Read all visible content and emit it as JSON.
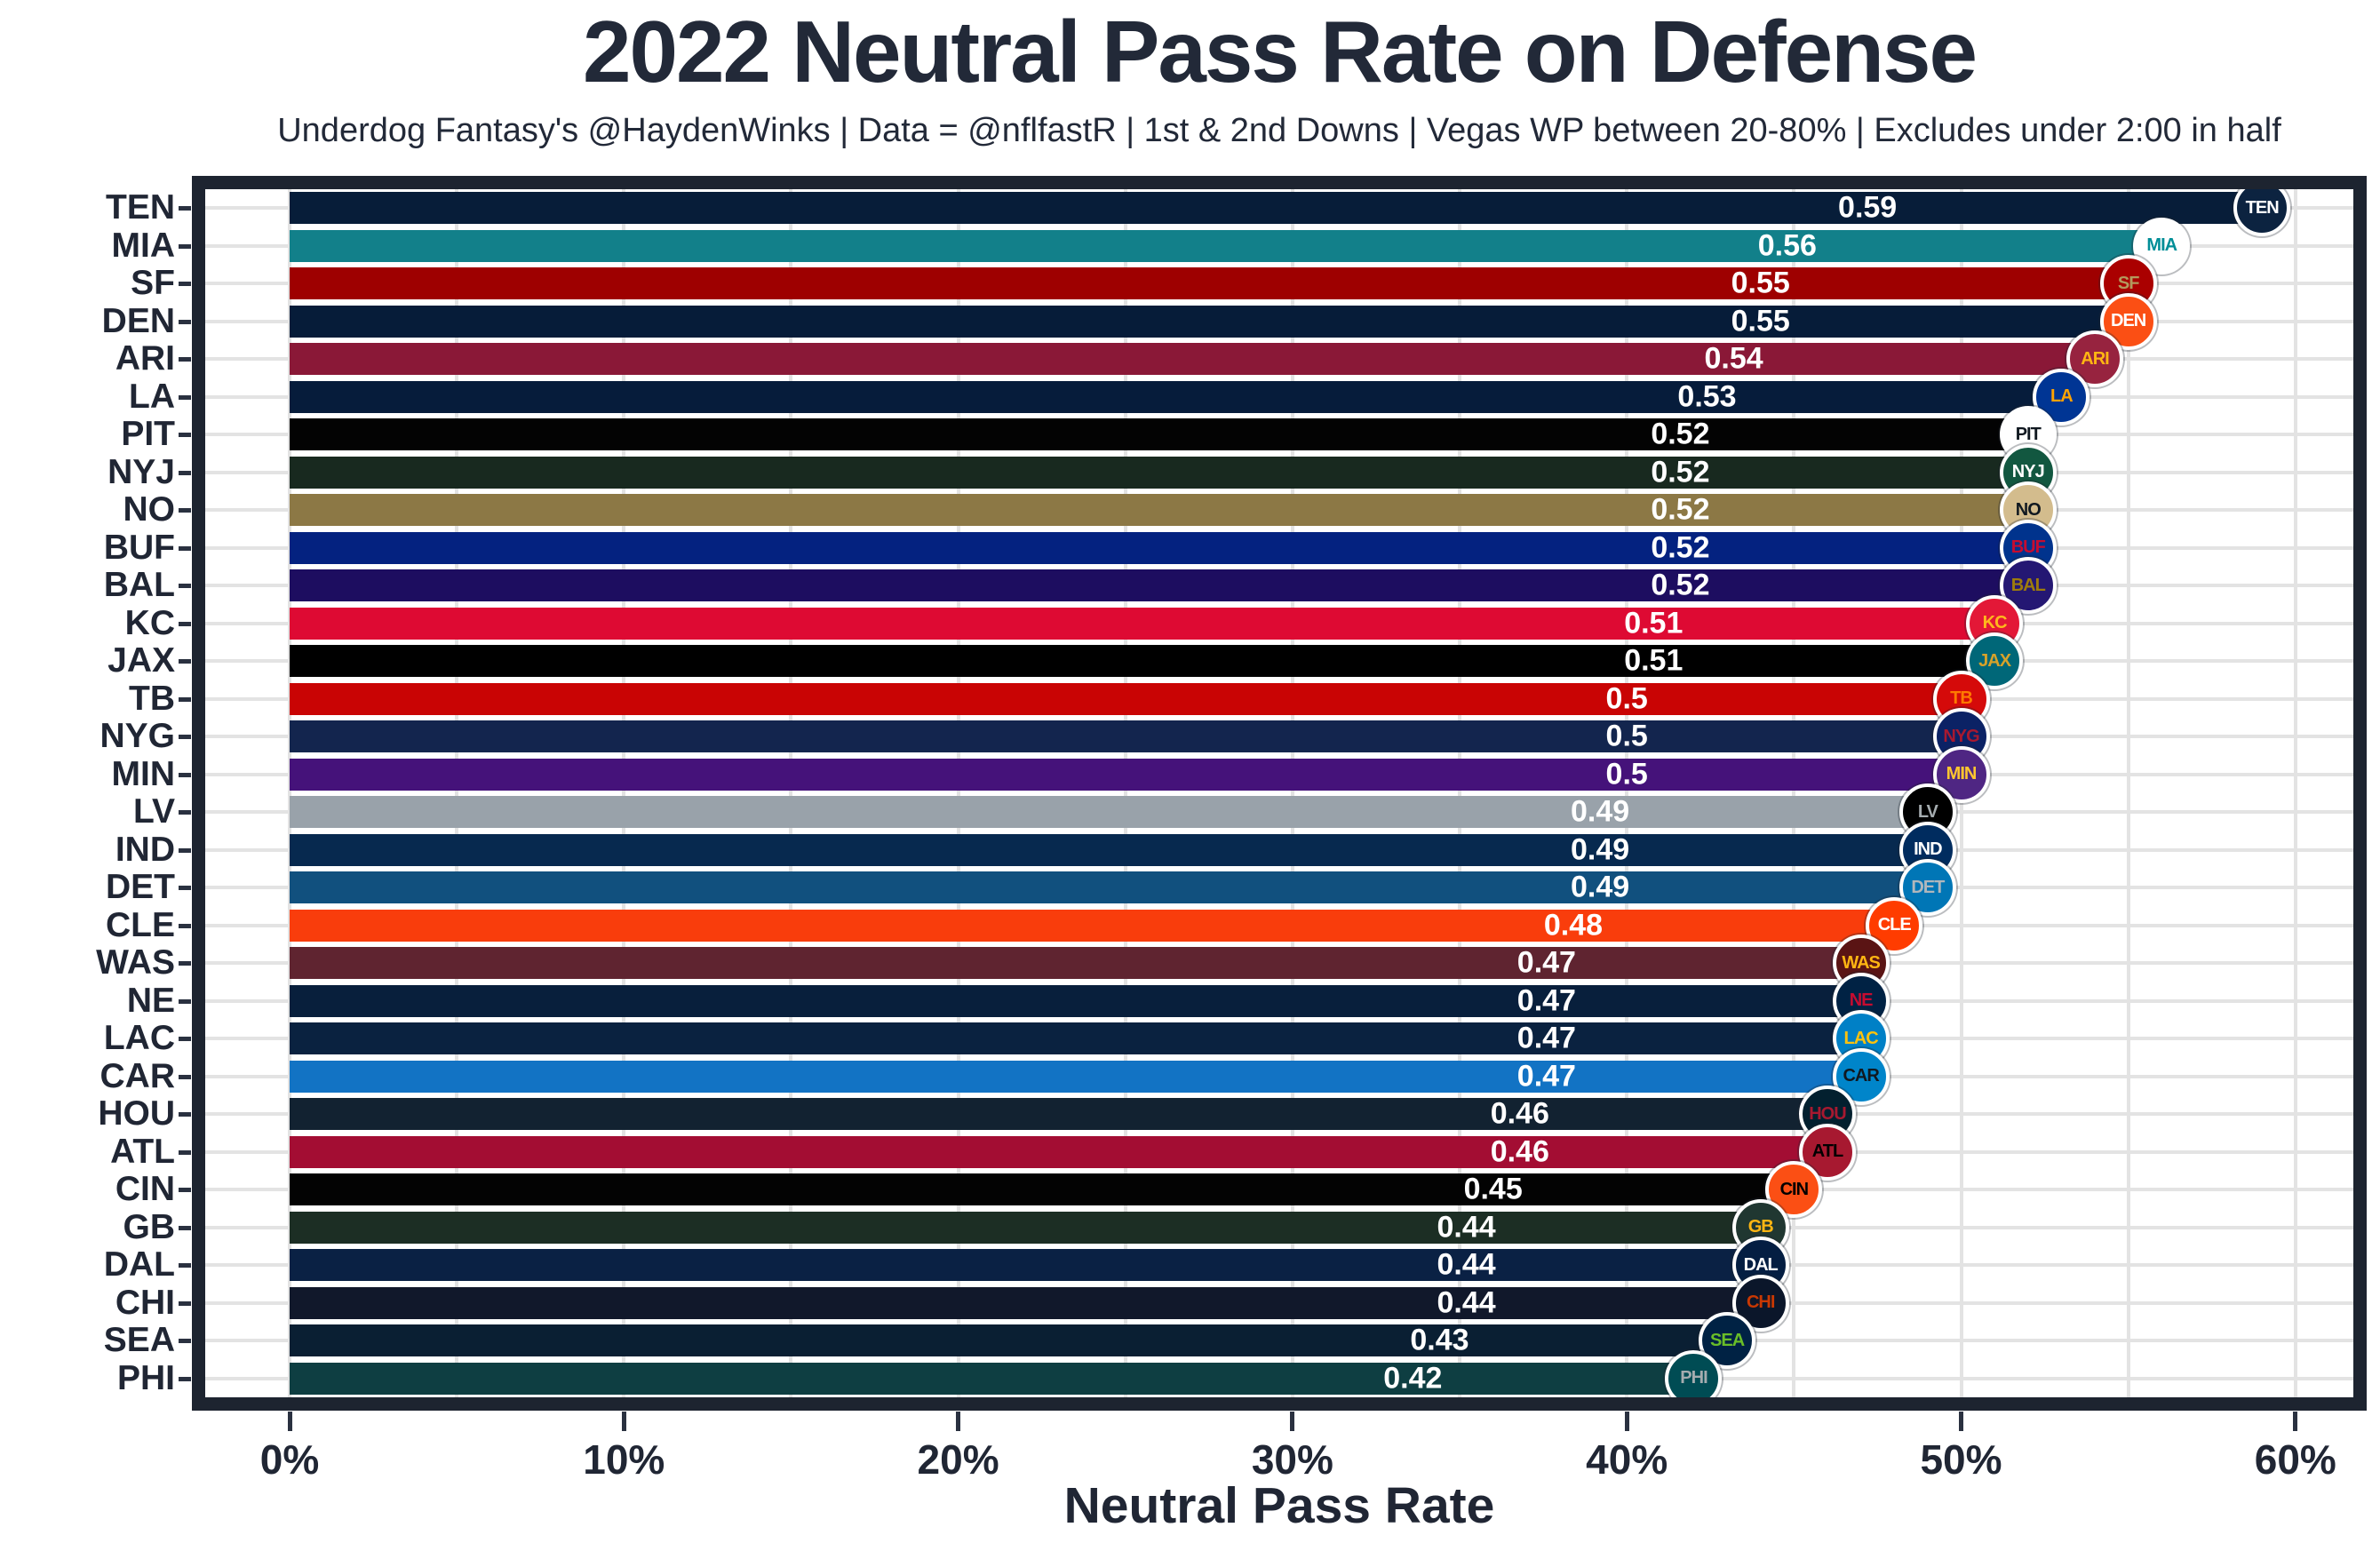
{
  "title": "2022 Neutral Pass Rate on Defense",
  "subtitle": "Underdog Fantasy's @HaydenWinks | Data = @nflfastR | 1st & 2nd Downs | Vegas WP between 20-80% | Excludes under 2:00 in half",
  "x_axis": {
    "label": "Neutral Pass Rate",
    "ticks": [
      {
        "value": 0,
        "label": "0%"
      },
      {
        "value": 10,
        "label": "10%"
      },
      {
        "value": 20,
        "label": "20%"
      },
      {
        "value": 30,
        "label": "30%"
      },
      {
        "value": 40,
        "label": "40%"
      },
      {
        "value": 50,
        "label": "50%"
      },
      {
        "value": 60,
        "label": "60%"
      }
    ],
    "gridline_step_pct": 5,
    "gridline_max_pct": 60
  },
  "colors": {
    "background": "#FFFFFF",
    "panel_border": "#1D2430",
    "gridline": "#E3E3E3",
    "text": "#202634",
    "value_label": "#FFFFFF",
    "axis_tick": "#2A3140"
  },
  "chart_data": {
    "type": "bar",
    "orientation": "horizontal",
    "title": "2022 Neutral Pass Rate on Defense",
    "xlabel": "Neutral Pass Rate",
    "xlim": [
      0,
      0.62
    ],
    "grid": true,
    "value_label_note": "white value label centered at ~80% of bar length; team logo badge at bar end",
    "categories": [
      "TEN",
      "MIA",
      "SF",
      "DEN",
      "ARI",
      "LA",
      "PIT",
      "NYJ",
      "NO",
      "BUF",
      "BAL",
      "KC",
      "JAX",
      "TB",
      "NYG",
      "MIN",
      "LV",
      "IND",
      "DET",
      "CLE",
      "WAS",
      "NE",
      "LAC",
      "CAR",
      "HOU",
      "ATL",
      "CIN",
      "GB",
      "DAL",
      "CHI",
      "SEA",
      "PHI"
    ],
    "values": [
      0.59,
      0.56,
      0.55,
      0.55,
      0.54,
      0.53,
      0.52,
      0.52,
      0.52,
      0.52,
      0.52,
      0.51,
      0.51,
      0.5,
      0.5,
      0.5,
      0.49,
      0.49,
      0.49,
      0.48,
      0.47,
      0.47,
      0.47,
      0.47,
      0.46,
      0.46,
      0.45,
      0.44,
      0.44,
      0.44,
      0.43,
      0.42
    ],
    "teams": [
      {
        "abbr": "TEN",
        "value": 0.59,
        "label": "0.59",
        "bar_color": "#071D39",
        "logo": {
          "bg": "#0C2340",
          "fg": "#FFFFFF"
        }
      },
      {
        "abbr": "MIA",
        "value": 0.56,
        "label": "0.56",
        "bar_color": "#12808A",
        "logo": {
          "bg": "#FFFFFF",
          "fg": "#008E97"
        }
      },
      {
        "abbr": "SF",
        "value": 0.55,
        "label": "0.55",
        "bar_color": "#9E0000",
        "logo": {
          "bg": "#AA0000",
          "fg": "#B3995D"
        }
      },
      {
        "abbr": "DEN",
        "value": 0.55,
        "label": "0.55",
        "bar_color": "#061C39",
        "logo": {
          "bg": "#FB4F14",
          "fg": "#FFFFFF"
        }
      },
      {
        "abbr": "ARI",
        "value": 0.54,
        "label": "0.54",
        "bar_color": "#8A1837",
        "logo": {
          "bg": "#97233F",
          "fg": "#FFB612"
        }
      },
      {
        "abbr": "LA",
        "value": 0.53,
        "label": "0.53",
        "bar_color": "#061C3B",
        "logo": {
          "bg": "#003594",
          "fg": "#FFA300"
        }
      },
      {
        "abbr": "PIT",
        "value": 0.52,
        "label": "0.52",
        "bar_color": "#030303",
        "logo": {
          "bg": "#FFFFFF",
          "fg": "#101820"
        }
      },
      {
        "abbr": "NYJ",
        "value": 0.52,
        "label": "0.52",
        "bar_color": "#18291F",
        "logo": {
          "bg": "#125740",
          "fg": "#FFFFFF"
        }
      },
      {
        "abbr": "NO",
        "value": 0.52,
        "label": "0.52",
        "bar_color": "#8C7845",
        "logo": {
          "bg": "#D3BC8D",
          "fg": "#101820"
        }
      },
      {
        "abbr": "BUF",
        "value": 0.52,
        "label": "0.52",
        "bar_color": "#042280",
        "logo": {
          "bg": "#00338D",
          "fg": "#C60C30"
        }
      },
      {
        "abbr": "BAL",
        "value": 0.52,
        "label": "0.52",
        "bar_color": "#1D0D60",
        "logo": {
          "bg": "#241773",
          "fg": "#9E7C0C"
        }
      },
      {
        "abbr": "KC",
        "value": 0.51,
        "label": "0.51",
        "bar_color": "#DE0A33",
        "logo": {
          "bg": "#E31837",
          "fg": "#FFB81C"
        }
      },
      {
        "abbr": "JAX",
        "value": 0.51,
        "label": "0.51",
        "bar_color": "#000000",
        "logo": {
          "bg": "#006778",
          "fg": "#D7A22A"
        }
      },
      {
        "abbr": "TB",
        "value": 0.5,
        "label": "0.5",
        "bar_color": "#C90404",
        "logo": {
          "bg": "#D50A0A",
          "fg": "#FF7900"
        }
      },
      {
        "abbr": "NYG",
        "value": 0.5,
        "label": "0.5",
        "bar_color": "#13254E",
        "logo": {
          "bg": "#0B2265",
          "fg": "#A71930"
        }
      },
      {
        "abbr": "MIN",
        "value": 0.5,
        "label": "0.5",
        "bar_color": "#45127A",
        "logo": {
          "bg": "#4F2683",
          "fg": "#FFC62F"
        }
      },
      {
        "abbr": "LV",
        "value": 0.49,
        "label": "0.49",
        "bar_color": "#99A2AA",
        "logo": {
          "bg": "#000000",
          "fg": "#A5ACAF"
        }
      },
      {
        "abbr": "IND",
        "value": 0.49,
        "label": "0.49",
        "bar_color": "#07294F",
        "logo": {
          "bg": "#002C5F",
          "fg": "#FFFFFF"
        }
      },
      {
        "abbr": "DET",
        "value": 0.49,
        "label": "0.49",
        "bar_color": "#11507E",
        "logo": {
          "bg": "#0076B6",
          "fg": "#B0B7BC"
        }
      },
      {
        "abbr": "CLE",
        "value": 0.48,
        "label": "0.48",
        "bar_color": "#F93D0C",
        "logo": {
          "bg": "#FF3C00",
          "fg": "#FFFFFF"
        }
      },
      {
        "abbr": "WAS",
        "value": 0.47,
        "label": "0.47",
        "bar_color": "#5F2430",
        "logo": {
          "bg": "#5A1414",
          "fg": "#FFB612"
        }
      },
      {
        "abbr": "NE",
        "value": 0.47,
        "label": "0.47",
        "bar_color": "#081F3C",
        "logo": {
          "bg": "#002244",
          "fg": "#C60C30"
        }
      },
      {
        "abbr": "LAC",
        "value": 0.47,
        "label": "0.47",
        "bar_color": "#0A2240",
        "logo": {
          "bg": "#0080C6",
          "fg": "#FFC20E"
        }
      },
      {
        "abbr": "CAR",
        "value": 0.47,
        "label": "0.47",
        "bar_color": "#1273C4",
        "logo": {
          "bg": "#0085CA",
          "fg": "#101820"
        }
      },
      {
        "abbr": "HOU",
        "value": 0.46,
        "label": "0.46",
        "bar_color": "#122231",
        "logo": {
          "bg": "#03202F",
          "fg": "#A71930"
        }
      },
      {
        "abbr": "ATL",
        "value": 0.46,
        "label": "0.46",
        "bar_color": "#A30D33",
        "logo": {
          "bg": "#A71930",
          "fg": "#000000"
        }
      },
      {
        "abbr": "CIN",
        "value": 0.45,
        "label": "0.45",
        "bar_color": "#030303",
        "logo": {
          "bg": "#FB4F14",
          "fg": "#000000"
        }
      },
      {
        "abbr": "GB",
        "value": 0.44,
        "label": "0.44",
        "bar_color": "#1C2E24",
        "logo": {
          "bg": "#203731",
          "fg": "#FFB612"
        }
      },
      {
        "abbr": "DAL",
        "value": 0.44,
        "label": "0.44",
        "bar_color": "#0A2144",
        "logo": {
          "bg": "#041E42",
          "fg": "#FFFFFF"
        }
      },
      {
        "abbr": "CHI",
        "value": 0.44,
        "label": "0.44",
        "bar_color": "#11182B",
        "logo": {
          "bg": "#0B162A",
          "fg": "#C83803"
        }
      },
      {
        "abbr": "SEA",
        "value": 0.43,
        "label": "0.43",
        "bar_color": "#0A1F33",
        "logo": {
          "bg": "#002244",
          "fg": "#69BE28"
        }
      },
      {
        "abbr": "PHI",
        "value": 0.42,
        "label": "0.42",
        "bar_color": "#0E3E42",
        "logo": {
          "bg": "#004C54",
          "fg": "#A5ACAF"
        }
      }
    ]
  }
}
